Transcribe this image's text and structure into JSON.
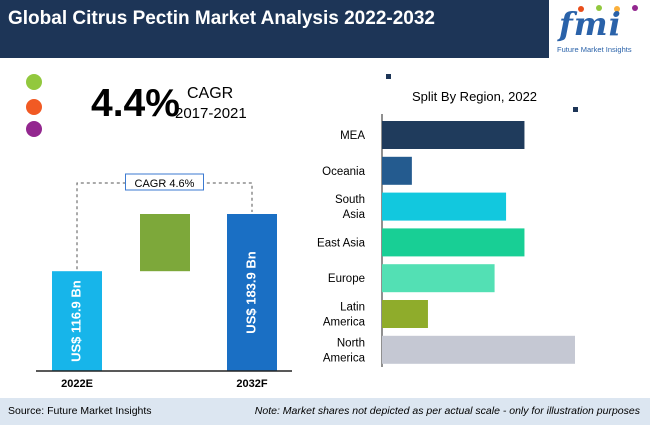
{
  "header": {
    "title": "Global Citrus Pectin Market Analysis 2022-2032"
  },
  "logo": {
    "main": "fmi",
    "sub": "Future Market Insights"
  },
  "cagr": {
    "value": "4.4%",
    "label": "CAGR",
    "period": "2017-2021"
  },
  "legend_dots": [
    {
      "color": "#92c83e"
    },
    {
      "color": "#f15a24"
    },
    {
      "color": "#93278f"
    }
  ],
  "footer": {
    "source": "Source: Future Market Insights",
    "note": "Note: Market shares not depicted as per actual scale - only for illustration purposes"
  },
  "chart_data": [
    {
      "type": "bar",
      "categories": [
        "2022E",
        "2032F"
      ],
      "values": [
        116.9,
        183.9
      ],
      "value_labels": [
        "US$ 116.9 Bn",
        "US$ 183.9 Bn"
      ],
      "annotation": "CAGR 4.6%",
      "colors": {
        "bar_2022": "#17b5ea",
        "bar_2032": "#1a6fc4",
        "increment": "#7da83a"
      },
      "ylim": [
        0,
        183.9
      ]
    },
    {
      "type": "bar",
      "orientation": "horizontal",
      "title": "Split By Region, 2022",
      "categories": [
        "MEA",
        "Oceania",
        "South Asia",
        "East Asia",
        "Europe",
        "Latin America",
        "North America"
      ],
      "category_lines": [
        [
          "MEA"
        ],
        [
          "Oceania"
        ],
        [
          "South",
          "Asia"
        ],
        [
          "East Asia"
        ],
        [
          "Europe"
        ],
        [
          "Latin",
          "America"
        ],
        [
          "North",
          "America"
        ]
      ],
      "values": [
        6.2,
        1.3,
        5.4,
        6.2,
        4.9,
        2.0,
        8.4
      ],
      "colors": [
        "#1f3b5c",
        "#245b8f",
        "#12c8de",
        "#18cf95",
        "#53e0b4",
        "#8fac2b",
        "#c5c8d3"
      ],
      "xlim": [
        0,
        8.4
      ]
    }
  ]
}
